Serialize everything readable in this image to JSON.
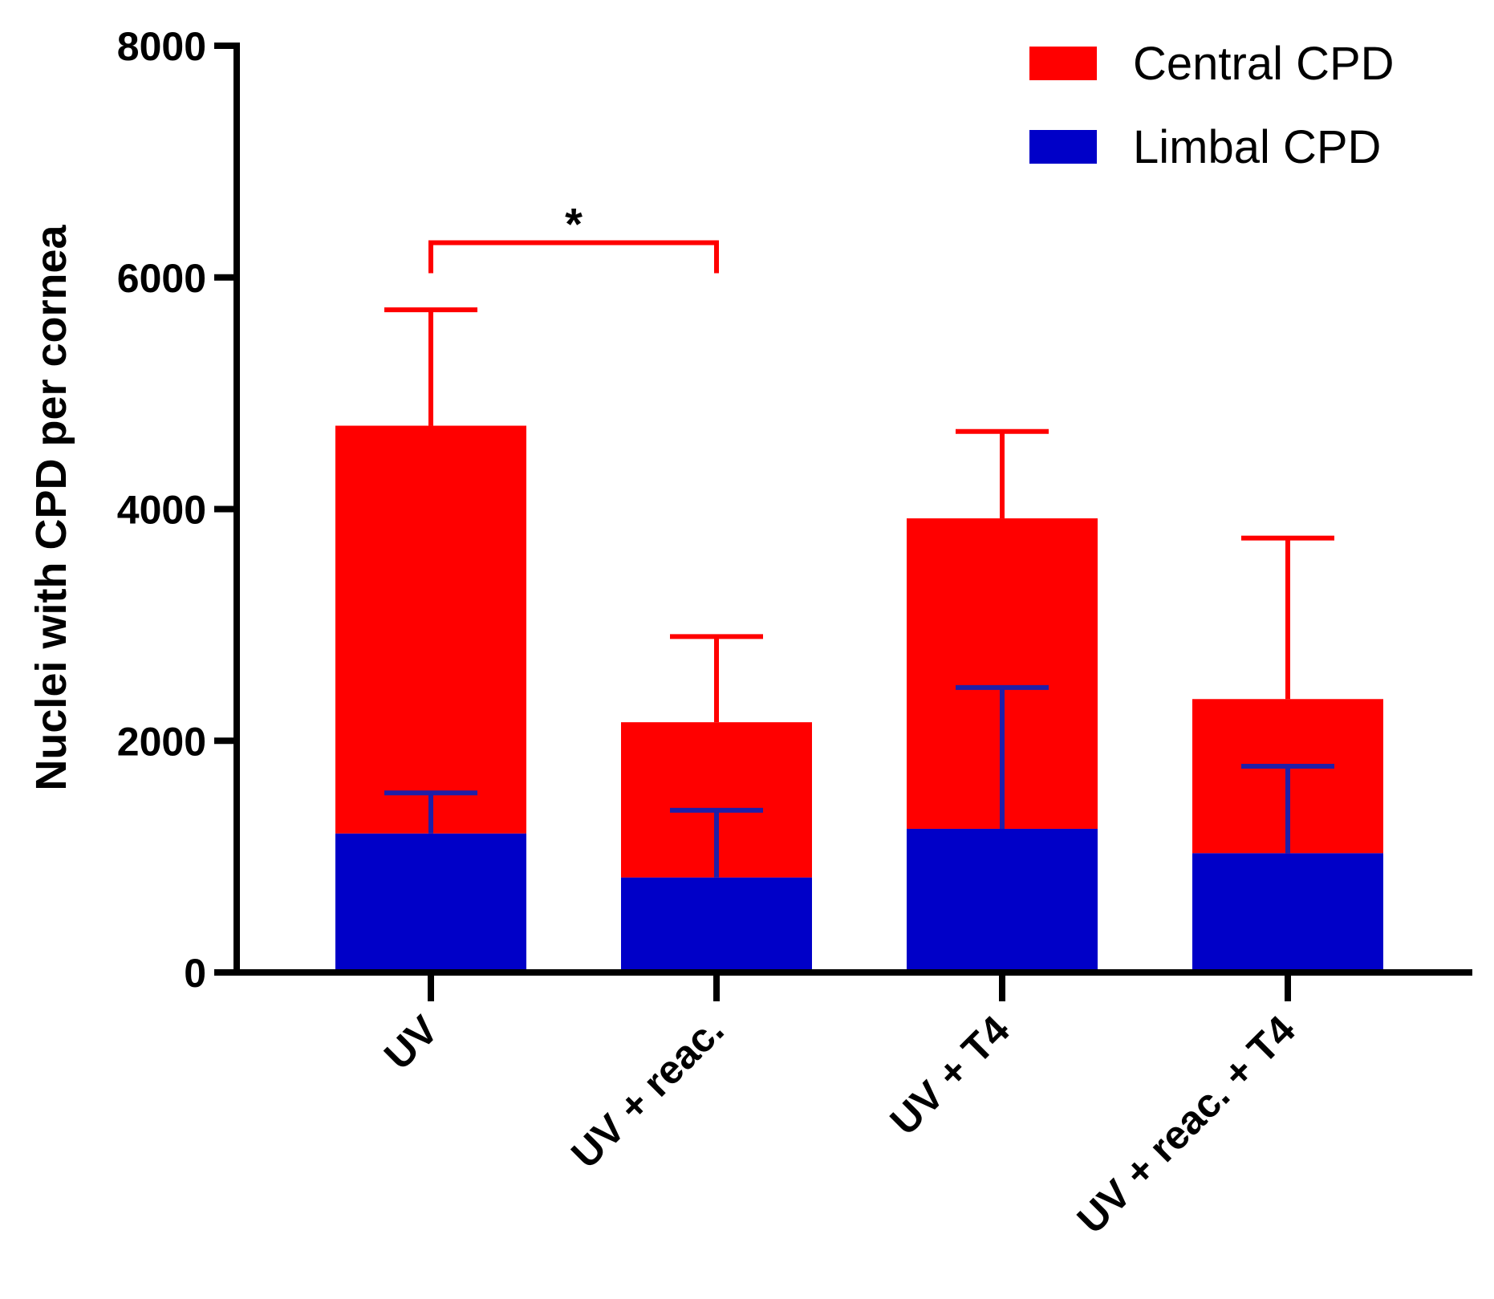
{
  "chart_data": {
    "type": "bar",
    "stacked": true,
    "title": "",
    "xlabel": "",
    "ylabel": "Nuclei with CPD per cornea",
    "ylim": [
      0,
      8000
    ],
    "yticks": [
      0,
      2000,
      4000,
      6000,
      8000
    ],
    "grid": false,
    "legend_position": "top-right",
    "categories": [
      "UV",
      "UV + reac.",
      "UV + T4",
      "UV + reac. + T4"
    ],
    "series": [
      {
        "name": "Limbal CPD",
        "color": "#0000c8",
        "error_color": "#1f1fa8",
        "values": [
          1200,
          820,
          1240,
          1030
        ],
        "errors": [
          350,
          580,
          1220,
          750
        ]
      },
      {
        "name": "Central CPD",
        "color": "#ff0000",
        "error_color": "#ff0000",
        "values": [
          3520,
          1340,
          2680,
          1330
        ],
        "errors": [
          1000,
          740,
          750,
          1390
        ]
      }
    ],
    "significance": [
      {
        "from": 0,
        "to": 1,
        "label": "*",
        "y": 6300,
        "color": "#ff0000"
      }
    ]
  }
}
